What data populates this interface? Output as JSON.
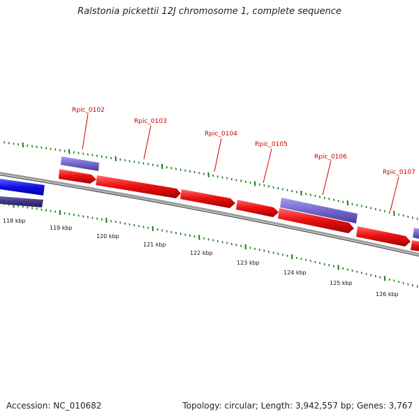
{
  "title": "Ralstonia pickettii 12J chromosome 1, complete sequence",
  "footer": {
    "accession": "Accession: NC_010682",
    "topology": "Topology: circular; Length: 3,942,557 bp; Genes: 3,767"
  },
  "genes": [
    {
      "name": "Rpic_0102"
    },
    {
      "name": "Rpic_0103"
    },
    {
      "name": "Rpic_0104"
    },
    {
      "name": "Rpic_0105"
    },
    {
      "name": "Rpic_0106"
    },
    {
      "name": "Rpic_0107"
    }
  ],
  "kbp_ticks": [
    "118 kbp",
    "119 kbp",
    "120 kbp",
    "121 kbp",
    "122 kbp",
    "123 kbp",
    "124 kbp",
    "125 kbp",
    "126 kbp"
  ],
  "colors": {
    "forward_cds": "#e00000",
    "forward_feature": "#7466cc",
    "reverse_cds": "#1010e0",
    "reverse_feature": "#3b3480",
    "backbone": "#7a7a7a",
    "tick": "#1a7a1a",
    "gene_label": "#cc0000"
  }
}
